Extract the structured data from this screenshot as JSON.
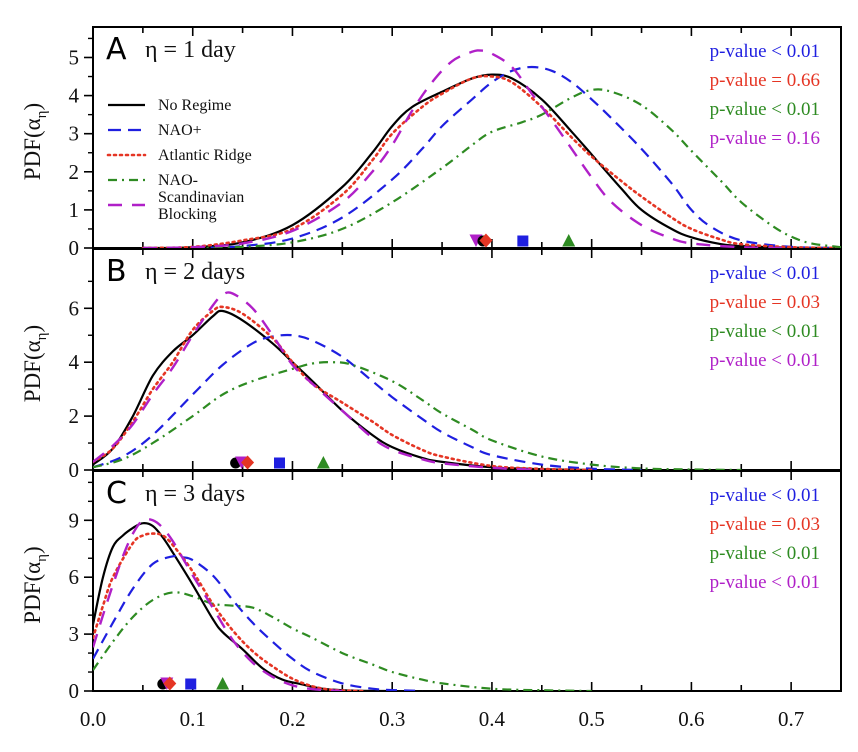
{
  "chart_data": {
    "type": "line",
    "xlabel": "",
    "xlim": [
      0.0,
      0.75
    ],
    "xticks": [
      "0.0",
      "0.1",
      "0.2",
      "0.3",
      "0.4",
      "0.5",
      "0.6",
      "0.7"
    ],
    "xtick_values": [
      0.0,
      0.1,
      0.2,
      0.3,
      0.4,
      0.5,
      0.6,
      0.7
    ],
    "legend": {
      "placement": "upper-left of panel A",
      "entries": [
        {
          "key": "no_regime",
          "label": "No Regime",
          "color": "#000000",
          "dash": "solid"
        },
        {
          "key": "nao_plus",
          "label": "NAO+",
          "color": "#1f1fe0",
          "dash": "dashed"
        },
        {
          "key": "atlantic_ridge",
          "label": "Atlantic Ridge",
          "color": "#e53524",
          "dash": "dotted"
        },
        {
          "key": "nao_minus",
          "label": "NAO-",
          "color": "#2e8b22",
          "dash": "dashdot"
        },
        {
          "key": "scand_blocking",
          "label": "Scandinavian Blocking",
          "label_lines": [
            "Scandinavian",
            "Blocking"
          ],
          "color": "#b020c8",
          "dash": "longdash"
        }
      ]
    },
    "panels": [
      {
        "letter": "A",
        "title": "η = 1 day",
        "ylabel": "PDF(αη)",
        "ylim": [
          0,
          5.8
        ],
        "yticks": [
          0,
          1,
          2,
          3,
          4,
          5
        ],
        "yminor": [
          0.5,
          1.5,
          2.5,
          3.5,
          4.5,
          5.5
        ],
        "pvalues": [
          {
            "text": "p-value < 0.01",
            "series": "nao_plus"
          },
          {
            "text": "p-value = 0.66",
            "series": "atlantic_ridge"
          },
          {
            "text": "p-value < 0.01",
            "series": "nao_minus"
          },
          {
            "text": "p-value = 0.16",
            "series": "scand_blocking"
          }
        ],
        "markers": [
          {
            "series": "scand_blocking",
            "shape": "triangle-down",
            "x": 0.384
          },
          {
            "series": "no_regime",
            "shape": "circle",
            "x": 0.391
          },
          {
            "series": "atlantic_ridge",
            "shape": "diamond",
            "x": 0.394
          },
          {
            "series": "nao_plus",
            "shape": "square",
            "x": 0.431
          },
          {
            "series": "nao_minus",
            "shape": "triangle-up",
            "x": 0.477
          }
        ],
        "series": [
          {
            "key": "no_regime",
            "x": [
              0.05,
              0.1,
              0.15,
              0.2,
              0.25,
              0.28,
              0.3,
              0.32,
              0.35,
              0.38,
              0.4,
              0.42,
              0.45,
              0.48,
              0.5,
              0.53,
              0.55,
              0.58,
              0.6,
              0.63,
              0.65,
              0.7,
              0.75
            ],
            "y": [
              0.0,
              0.02,
              0.15,
              0.6,
              1.6,
              2.5,
              3.2,
              3.7,
              4.1,
              4.45,
              4.55,
              4.45,
              3.9,
              3.05,
              2.45,
              1.55,
              1.0,
              0.5,
              0.28,
              0.1,
              0.05,
              0.01,
              0.0
            ]
          },
          {
            "key": "nao_plus",
            "x": [
              0.1,
              0.15,
              0.2,
              0.25,
              0.3,
              0.33,
              0.35,
              0.38,
              0.4,
              0.42,
              0.44,
              0.46,
              0.48,
              0.5,
              0.52,
              0.55,
              0.58,
              0.6,
              0.62,
              0.65,
              0.7,
              0.75
            ],
            "y": [
              0.0,
              0.05,
              0.25,
              0.8,
              1.8,
              2.6,
              3.2,
              3.9,
              4.35,
              4.65,
              4.75,
              4.65,
              4.35,
              3.9,
              3.4,
              2.6,
              1.7,
              1.0,
              0.55,
              0.2,
              0.03,
              0.0
            ]
          },
          {
            "key": "atlantic_ridge",
            "x": [
              0.05,
              0.1,
              0.15,
              0.2,
              0.25,
              0.28,
              0.3,
              0.33,
              0.35,
              0.38,
              0.4,
              0.42,
              0.45,
              0.48,
              0.5,
              0.53,
              0.55,
              0.58,
              0.6,
              0.63,
              0.65,
              0.7,
              0.75
            ],
            "y": [
              0.0,
              0.03,
              0.2,
              0.5,
              1.4,
              2.3,
              3.0,
              3.7,
              4.05,
              4.45,
              4.5,
              4.35,
              3.7,
              2.9,
              2.4,
              1.75,
              1.35,
              0.8,
              0.5,
              0.22,
              0.1,
              0.02,
              0.0
            ]
          },
          {
            "key": "nao_minus",
            "x": [
              0.1,
              0.15,
              0.2,
              0.25,
              0.3,
              0.35,
              0.38,
              0.4,
              0.43,
              0.45,
              0.48,
              0.5,
              0.52,
              0.55,
              0.58,
              0.6,
              0.63,
              0.65,
              0.68,
              0.7,
              0.72,
              0.75
            ],
            "y": [
              0.0,
              0.03,
              0.15,
              0.5,
              1.2,
              2.1,
              2.7,
              3.05,
              3.3,
              3.5,
              3.95,
              4.15,
              4.1,
              3.75,
              3.1,
              2.55,
              1.75,
              1.2,
              0.6,
              0.3,
              0.12,
              0.02
            ]
          },
          {
            "key": "scand_blocking",
            "x": [
              0.05,
              0.1,
              0.15,
              0.2,
              0.25,
              0.28,
              0.3,
              0.32,
              0.34,
              0.36,
              0.38,
              0.39,
              0.4,
              0.42,
              0.44,
              0.46,
              0.48,
              0.5,
              0.52,
              0.55,
              0.58,
              0.6,
              0.65,
              0.7
            ],
            "y": [
              0.0,
              0.02,
              0.12,
              0.45,
              1.2,
              2.0,
              2.7,
              3.6,
              4.35,
              4.9,
              5.15,
              5.18,
              5.1,
              4.75,
              4.05,
              3.35,
              2.6,
              1.85,
              1.2,
              0.6,
              0.25,
              0.12,
              0.02,
              0.0
            ]
          }
        ]
      },
      {
        "letter": "B",
        "title": "η = 2 days",
        "ylabel": "PDF(αη)",
        "ylim": [
          0,
          8.2
        ],
        "yticks": [
          0,
          2,
          4,
          6
        ],
        "yminor": [
          1,
          3,
          5,
          7
        ],
        "pvalues": [
          {
            "text": "p-value < 0.01",
            "series": "nao_plus"
          },
          {
            "text": "p-value = 0.03",
            "series": "atlantic_ridge"
          },
          {
            "text": "p-value < 0.01",
            "series": "nao_minus"
          },
          {
            "text": "p-value < 0.01",
            "series": "scand_blocking"
          }
        ],
        "markers": [
          {
            "series": "no_regime",
            "shape": "circle",
            "x": 0.143
          },
          {
            "series": "scand_blocking",
            "shape": "triangle-down",
            "x": 0.149
          },
          {
            "series": "atlantic_ridge",
            "shape": "diamond",
            "x": 0.155
          },
          {
            "series": "nao_plus",
            "shape": "square",
            "x": 0.187
          },
          {
            "series": "nao_minus",
            "shape": "triangle-up",
            "x": 0.231
          }
        ],
        "series": [
          {
            "key": "no_regime",
            "x": [
              0.0,
              0.02,
              0.04,
              0.06,
              0.08,
              0.1,
              0.12,
              0.13,
              0.15,
              0.18,
              0.2,
              0.22,
              0.25,
              0.28,
              0.3,
              0.33,
              0.35,
              0.4,
              0.45,
              0.5
            ],
            "y": [
              0.2,
              0.8,
              2.0,
              3.5,
              4.4,
              5.0,
              5.7,
              5.9,
              5.55,
              4.7,
              4.0,
              3.3,
              2.2,
              1.3,
              0.85,
              0.45,
              0.3,
              0.1,
              0.03,
              0.0
            ]
          },
          {
            "key": "nao_plus",
            "x": [
              0.0,
              0.03,
              0.06,
              0.1,
              0.13,
              0.16,
              0.18,
              0.2,
              0.22,
              0.25,
              0.28,
              0.3,
              0.33,
              0.35,
              0.38,
              0.4,
              0.45,
              0.5,
              0.55
            ],
            "y": [
              0.1,
              0.5,
              1.3,
              2.8,
              3.9,
              4.7,
              4.95,
              5.0,
              4.8,
              4.2,
              3.3,
              2.7,
              1.9,
              1.4,
              0.85,
              0.55,
              0.2,
              0.05,
              0.0
            ]
          },
          {
            "key": "atlantic_ridge",
            "x": [
              0.0,
              0.02,
              0.04,
              0.06,
              0.08,
              0.1,
              0.12,
              0.13,
              0.15,
              0.18,
              0.2,
              0.22,
              0.25,
              0.28,
              0.3,
              0.33,
              0.35,
              0.4,
              0.45,
              0.5
            ],
            "y": [
              0.3,
              0.8,
              1.8,
              3.0,
              4.0,
              5.2,
              5.9,
              6.05,
              5.8,
              4.9,
              4.0,
              3.2,
              2.5,
              1.8,
              1.3,
              0.75,
              0.5,
              0.15,
              0.04,
              0.0
            ]
          },
          {
            "key": "nao_minus",
            "x": [
              0.0,
              0.03,
              0.06,
              0.1,
              0.13,
              0.16,
              0.2,
              0.22,
              0.24,
              0.26,
              0.3,
              0.33,
              0.35,
              0.38,
              0.4,
              0.45,
              0.5,
              0.55,
              0.6,
              0.65
            ],
            "y": [
              0.1,
              0.4,
              1.0,
              2.0,
              2.8,
              3.3,
              3.75,
              3.95,
              4.0,
              3.9,
              3.3,
              2.6,
              2.1,
              1.5,
              1.1,
              0.5,
              0.2,
              0.06,
              0.02,
              0.0
            ]
          },
          {
            "key": "scand_blocking",
            "x": [
              0.0,
              0.02,
              0.04,
              0.06,
              0.08,
              0.1,
              0.12,
              0.13,
              0.14,
              0.16,
              0.18,
              0.2,
              0.22,
              0.25,
              0.28,
              0.3,
              0.33,
              0.35,
              0.4,
              0.45
            ],
            "y": [
              0.3,
              0.9,
              1.7,
              2.8,
              3.8,
              5.0,
              6.1,
              6.5,
              6.55,
              6.0,
              5.0,
              3.9,
              3.2,
              2.2,
              1.2,
              0.75,
              0.4,
              0.25,
              0.08,
              0.0
            ]
          }
        ]
      },
      {
        "letter": "C",
        "title": "η = 3 days",
        "ylabel": "PDF(αη)",
        "ylim": [
          0,
          11.6
        ],
        "yticks": [
          0,
          3,
          6,
          9
        ],
        "yminor": [
          1,
          2,
          4,
          5,
          7,
          8,
          10,
          11
        ],
        "pvalues": [
          {
            "text": "p-value < 0.01",
            "series": "nao_plus"
          },
          {
            "text": "p-value = 0.03",
            "series": "atlantic_ridge"
          },
          {
            "text": "p-value < 0.01",
            "series": "nao_minus"
          },
          {
            "text": "p-value < 0.01",
            "series": "scand_blocking"
          }
        ],
        "markers": [
          {
            "series": "no_regime",
            "shape": "circle",
            "x": 0.07
          },
          {
            "series": "scand_blocking",
            "shape": "triangle-down",
            "x": 0.074
          },
          {
            "series": "atlantic_ridge",
            "shape": "diamond",
            "x": 0.077
          },
          {
            "series": "nao_plus",
            "shape": "square",
            "x": 0.098
          },
          {
            "series": "nao_minus",
            "shape": "triangle-up",
            "x": 0.13
          }
        ],
        "series": [
          {
            "key": "no_regime",
            "x": [
              0.0,
              0.01,
              0.02,
              0.03,
              0.04,
              0.05,
              0.06,
              0.07,
              0.08,
              0.1,
              0.12,
              0.13,
              0.15,
              0.17,
              0.19,
              0.21,
              0.23,
              0.26,
              0.3
            ],
            "y": [
              3.5,
              6.0,
              7.6,
              8.2,
              8.6,
              8.85,
              8.7,
              8.1,
              7.3,
              5.6,
              3.8,
              3.1,
              2.2,
              1.2,
              0.6,
              0.35,
              0.12,
              0.02,
              0.0
            ]
          },
          {
            "key": "nao_plus",
            "x": [
              0.0,
              0.02,
              0.04,
              0.06,
              0.08,
              0.09,
              0.1,
              0.12,
              0.14,
              0.16,
              0.18,
              0.2,
              0.22,
              0.25,
              0.28,
              0.3,
              0.33
            ],
            "y": [
              1.7,
              3.6,
              5.4,
              6.7,
              7.1,
              7.05,
              6.9,
              6.1,
              4.8,
              3.6,
              2.6,
              1.7,
              1.0,
              0.4,
              0.12,
              0.05,
              0.0
            ]
          },
          {
            "key": "atlantic_ridge",
            "x": [
              0.0,
              0.01,
              0.02,
              0.04,
              0.05,
              0.06,
              0.07,
              0.08,
              0.1,
              0.12,
              0.14,
              0.16,
              0.18,
              0.2,
              0.22,
              0.24,
              0.27
            ],
            "y": [
              2.8,
              4.5,
              6.0,
              7.8,
              8.2,
              8.3,
              8.2,
              7.7,
              6.3,
              4.6,
              3.2,
              2.1,
              1.3,
              0.65,
              0.25,
              0.06,
              0.0
            ]
          },
          {
            "key": "nao_minus",
            "x": [
              0.0,
              0.02,
              0.04,
              0.06,
              0.08,
              0.1,
              0.12,
              0.14,
              0.16,
              0.18,
              0.2,
              0.22,
              0.25,
              0.28,
              0.3,
              0.33,
              0.35,
              0.4,
              0.45,
              0.5
            ],
            "y": [
              1.1,
              2.6,
              3.9,
              4.8,
              5.2,
              5.0,
              4.6,
              4.5,
              4.4,
              3.9,
              3.3,
              2.8,
              2.0,
              1.4,
              1.0,
              0.6,
              0.4,
              0.12,
              0.04,
              0.0
            ]
          },
          {
            "key": "scand_blocking",
            "x": [
              0.0,
              0.01,
              0.02,
              0.03,
              0.04,
              0.05,
              0.06,
              0.07,
              0.08,
              0.09,
              0.1,
              0.12,
              0.14,
              0.16,
              0.18,
              0.2,
              0.22,
              0.25
            ],
            "y": [
              2.3,
              4.0,
              5.6,
              7.1,
              8.3,
              9.0,
              9.0,
              8.6,
              7.9,
              7.0,
              6.1,
              4.4,
              2.7,
              1.5,
              0.75,
              0.3,
              0.1,
              0.0
            ]
          }
        ]
      }
    ]
  }
}
